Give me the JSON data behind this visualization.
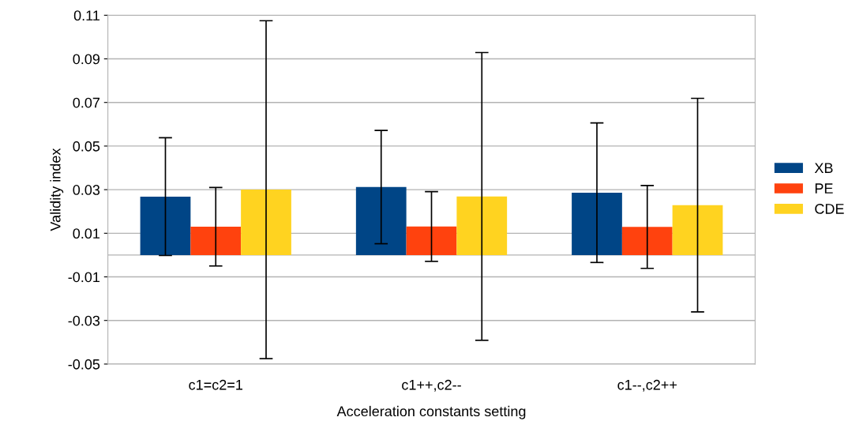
{
  "chart_data": {
    "type": "bar",
    "xlabel": "Acceleration constants setting",
    "ylabel": "Validity index",
    "categories": [
      "c1=c2=1",
      "c1++,c2--",
      "c1--,c2++"
    ],
    "series": [
      {
        "name": "XB",
        "color": "#004586",
        "values": [
          0.0268,
          0.0312,
          0.0286
        ],
        "errors": [
          0.027,
          0.026,
          0.032
        ]
      },
      {
        "name": "PE",
        "color": "#ff420e",
        "values": [
          0.013,
          0.0131,
          0.0129
        ],
        "errors": [
          0.018,
          0.016,
          0.019
        ]
      },
      {
        "name": "CDE",
        "color": "#ffd320",
        "values": [
          0.03,
          0.0269,
          0.0229
        ],
        "errors": [
          0.0775,
          0.066,
          0.049
        ]
      }
    ],
    "ylim": [
      -0.05,
      0.11
    ],
    "yticks": [
      -0.05,
      -0.03,
      -0.01,
      0.01,
      0.03,
      0.05,
      0.07,
      0.09,
      0.11
    ],
    "grid": "y",
    "legend": "right"
  }
}
